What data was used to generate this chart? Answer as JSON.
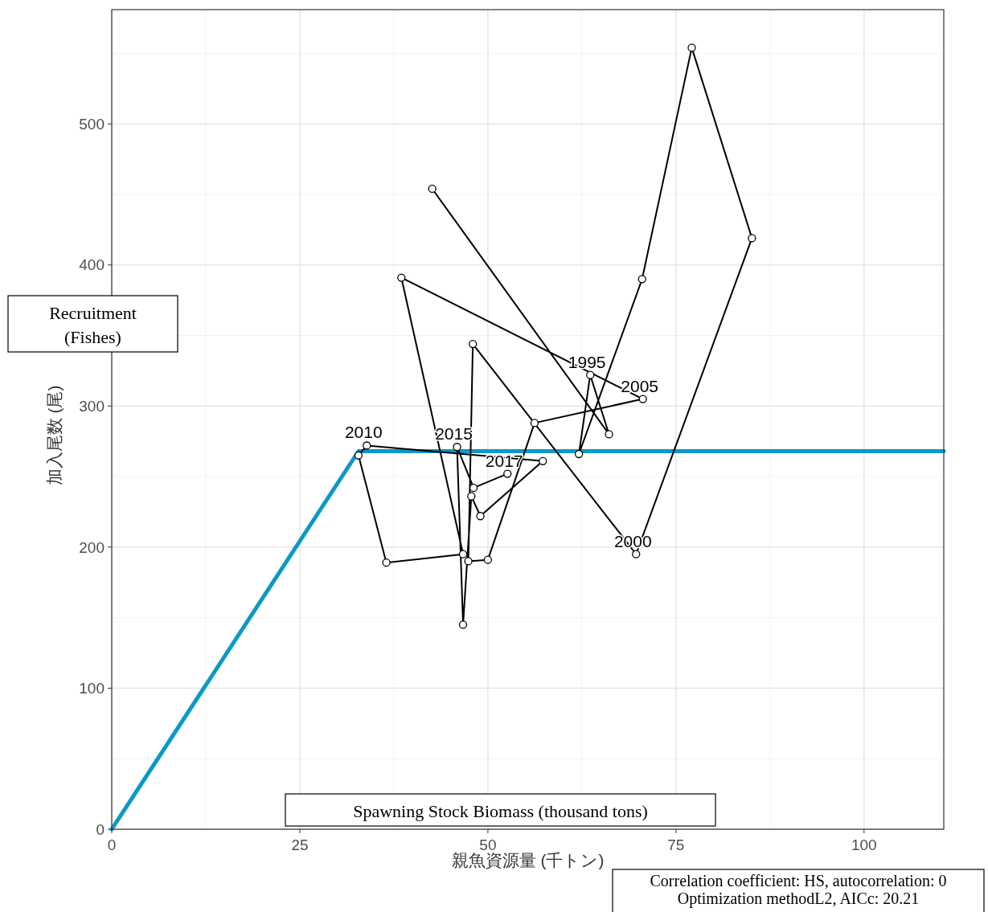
{
  "chart_data": {
    "type": "line",
    "xlabel": "親魚資源量 (千トン)",
    "ylabel": "加入尾数 (尾)",
    "xlim": [
      0,
      110.6
    ],
    "ylim": [
      0,
      581
    ],
    "xticks": [
      0,
      25,
      50,
      75,
      100
    ],
    "yticks": [
      0,
      100,
      200,
      300,
      400,
      500
    ],
    "grid": true,
    "series": [
      {
        "type": "line",
        "color": "#000000",
        "marker": "circle",
        "x": [
          42.6,
          66.1,
          63.6,
          62.1,
          70.5,
          77.1,
          85.1,
          69.7,
          48.0,
          47.4,
          50.0,
          56.2,
          70.6,
          38.5,
          46.7,
          36.5,
          32.8,
          33.9,
          57.3,
          49.0,
          47.8,
          46.7,
          45.9,
          48.1,
          52.6
        ],
        "values": [
          454,
          280,
          322,
          266,
          390,
          554,
          419,
          195,
          344,
          190,
          191,
          288,
          305,
          391,
          195,
          189,
          265,
          272,
          261,
          222,
          236,
          145,
          271,
          242,
          252
        ]
      },
      {
        "type": "line",
        "color": "#0b99c6",
        "marker": "none",
        "x": [
          0,
          32.8,
          110.6
        ],
        "values": [
          0,
          268,
          268
        ]
      }
    ],
    "annotations": [
      "Recruitment\n(Fishes)",
      "Spawning Stock Biomass (thousand tons)",
      "Correlation coefficient: HS, autocorrelation: 0\nOptimization methodL2, AICc: 20.21",
      {
        "text": "1995",
        "x": 63.6,
        "y": 322
      },
      {
        "text": "2000",
        "x": 69.7,
        "y": 195
      },
      {
        "text": "2005",
        "x": 70.6,
        "y": 305
      },
      {
        "text": "2010",
        "x": 33.9,
        "y": 272
      },
      {
        "text": "2015",
        "x": 45.9,
        "y": 271
      },
      {
        "text": "2017",
        "x": 52.6,
        "y": 252
      }
    ]
  }
}
